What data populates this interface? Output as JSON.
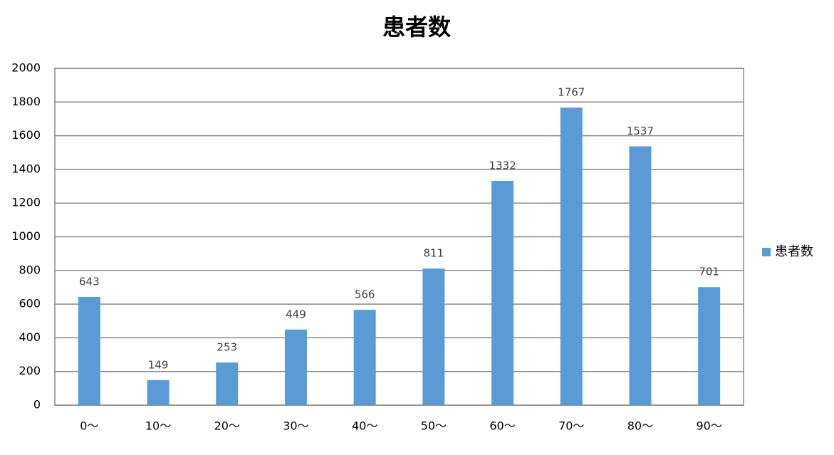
{
  "chart_data": {
    "type": "bar",
    "title": "患者数",
    "categories": [
      "0～",
      "10～",
      "20～",
      "30～",
      "40～",
      "50～",
      "60～",
      "70～",
      "80～",
      "90～"
    ],
    "series": [
      {
        "name": "患者数",
        "color": "#5b9bd5",
        "values": [
          643,
          149,
          253,
          449,
          566,
          811,
          1332,
          1767,
          1537,
          701
        ]
      }
    ],
    "ylim": [
      0,
      2000
    ],
    "yticks": [
      0,
      200,
      400,
      600,
      800,
      1000,
      1200,
      1400,
      1600,
      1800,
      2000
    ],
    "grid": true,
    "legend": "right",
    "data_labels": true
  }
}
